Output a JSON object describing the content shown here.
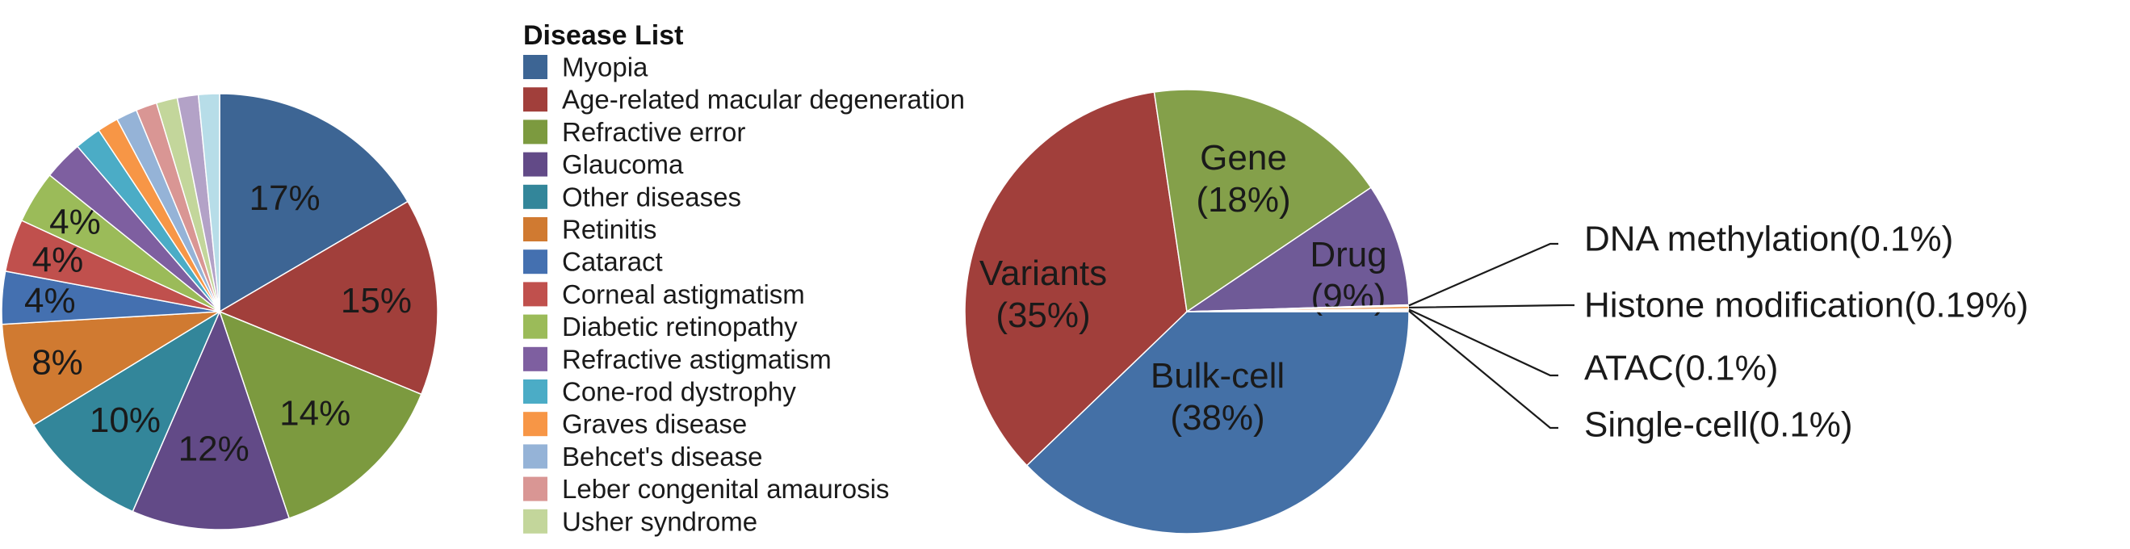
{
  "chart_data": [
    {
      "type": "pie",
      "legend_title": "Disease List",
      "legend_position": "right",
      "slices": [
        {
          "name": "Myopia",
          "value": 17,
          "label": "17%",
          "color": "#3D6594"
        },
        {
          "name": "Age-related macular degeneration",
          "value": 15,
          "label": "15%",
          "color": "#A13F3B"
        },
        {
          "name": "Refractive error",
          "value": 14,
          "label": "14%",
          "color": "#7C9A3F"
        },
        {
          "name": "Glaucoma",
          "value": 12,
          "label": "12%",
          "color": "#624A87"
        },
        {
          "name": "Other diseases",
          "value": 10,
          "label": "10%",
          "color": "#33869A"
        },
        {
          "name": "Retinitis",
          "value": 8,
          "label": "8%",
          "color": "#D07A31"
        },
        {
          "name": "Cataract",
          "value": 4,
          "label": "4%",
          "color": "#4470B0"
        },
        {
          "name": "Corneal astigmatism",
          "value": 4,
          "label": "4%",
          "color": "#C0504D"
        },
        {
          "name": "Diabetic retinopathy",
          "value": 4,
          "label": "4%",
          "color": "#9BBB59"
        },
        {
          "name": "Refractive astigmatism",
          "value": 3,
          "label": "",
          "color": "#7E5FA0"
        },
        {
          "name": "Cone-rod dystrophy",
          "value": 2,
          "label": "",
          "color": "#4BACC6"
        },
        {
          "name": "Graves disease",
          "value": 1.6,
          "label": "",
          "color": "#F79646"
        },
        {
          "name": "Behcet's disease",
          "value": 1.6,
          "label": "",
          "color": "#95B3D7"
        },
        {
          "name": "Leber congenital amaurosis",
          "value": 1.6,
          "label": "",
          "color": "#D99694"
        },
        {
          "name": "Usher syndrome",
          "value": 1.6,
          "label": "",
          "color": "#C3D69B"
        },
        {
          "name": "",
          "value": 1.6,
          "label": "",
          "color": "#B3A2C7"
        },
        {
          "name": "",
          "value": 1.6,
          "label": "",
          "color": "#B7DDE8"
        }
      ]
    },
    {
      "type": "pie",
      "slices": [
        {
          "name": "Bulk-cell",
          "value": 38,
          "label": "Bulk-cell\n(38%)",
          "color": "#4470A6"
        },
        {
          "name": "Variants",
          "value": 35,
          "label": "Variants\n(35%)",
          "color": "#A13F3B"
        },
        {
          "name": "Gene",
          "value": 18,
          "label": "Gene\n(18%)",
          "color": "#84A04A"
        },
        {
          "name": "Drug",
          "value": 9,
          "label": "Drug\n(9%)",
          "color": "#6F5A97"
        },
        {
          "name": "DNA methylation",
          "value": 0.1,
          "label": "DNA methylation(0.1%)",
          "color": "#3F9DB3"
        },
        {
          "name": "Histone modification",
          "value": 0.19,
          "label": "Histone modification(0.19%)",
          "color": "#E8893A"
        },
        {
          "name": "ATAC",
          "value": 0.1,
          "label": "ATAC(0.1%)",
          "color": "#8EA9D0"
        },
        {
          "name": "Single-cell",
          "value": 0.1,
          "label": "Single-cell(0.1%)",
          "color": "#C98B89"
        }
      ]
    }
  ]
}
